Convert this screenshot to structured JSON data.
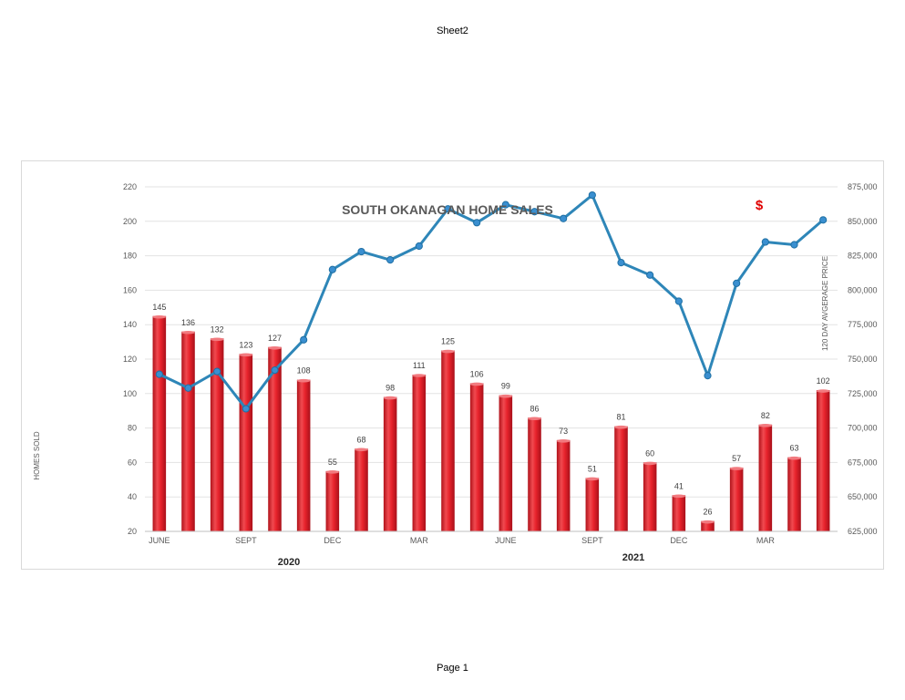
{
  "header": {
    "sheet_name": "Sheet2"
  },
  "footer": {
    "page_label": "Page 1"
  },
  "chart_data": {
    "type": "bar",
    "title": "SOUTH OKANAGAN HOME SALES",
    "annotation": "$",
    "ylabel": "HOMES SOLD",
    "y2label": "120 DAY AVGERAGE PRICE",
    "ylim": [
      20,
      220
    ],
    "y_ticks": [
      20,
      40,
      60,
      80,
      100,
      120,
      140,
      160,
      180,
      200,
      220
    ],
    "y2lim": [
      625000,
      875000
    ],
    "y2_ticks": [
      "625,000",
      "650,000",
      "675,000",
      "700,000",
      "725,000",
      "750,000",
      "775,000",
      "800,000",
      "825,000",
      "850,000",
      "875,000"
    ],
    "x_tick_labels": [
      "JUNE",
      "",
      "",
      "SEPT",
      "",
      "",
      "DEC",
      "",
      "",
      "MAR",
      "",
      "",
      "JUNE",
      "",
      "",
      "SEPT",
      "",
      "",
      "DEC",
      "",
      "",
      "MAR",
      "",
      ""
    ],
    "year_labels": [
      "2020",
      "2021"
    ],
    "grid": true,
    "colors": {
      "bars": "#e8232c",
      "line": "#2e86b8",
      "marker": "#3a8fd0"
    },
    "series": [
      {
        "type": "bar",
        "axis": "left",
        "values": [
          145,
          136,
          132,
          123,
          127,
          108,
          55,
          68,
          98,
          111,
          125,
          106,
          99,
          86,
          73,
          51,
          81,
          60,
          41,
          26,
          57,
          82,
          63,
          102
        ]
      },
      {
        "type": "line",
        "axis": "right",
        "values": [
          739000,
          729000,
          741000,
          714000,
          742000,
          764000,
          815000,
          828000,
          822000,
          832000,
          859000,
          849000,
          862000,
          857000,
          852000,
          869000,
          820000,
          811000,
          792000,
          738000,
          805000,
          835000,
          833000,
          851000
        ]
      }
    ]
  }
}
